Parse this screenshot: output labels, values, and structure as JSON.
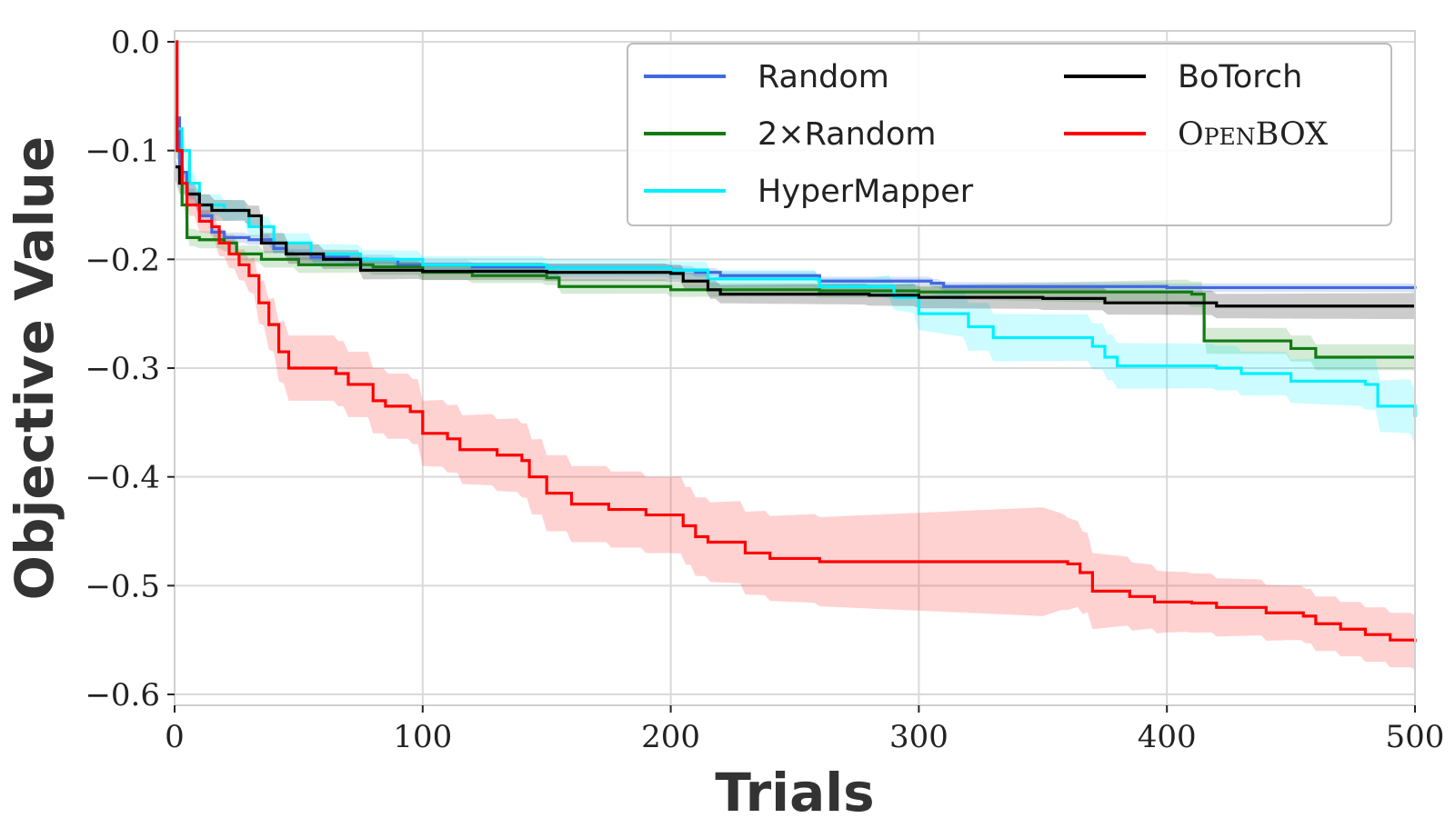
{
  "chart_data": {
    "type": "line",
    "xlabel": "Trials",
    "ylabel": "Objective Value",
    "xlim": [
      0,
      500
    ],
    "ylim": [
      -0.61,
      0.01
    ],
    "x_ticks": [
      0,
      100,
      200,
      300,
      400,
      500
    ],
    "x_tick_labels": [
      "0",
      "100",
      "200",
      "300",
      "400",
      "500"
    ],
    "y_ticks": [
      0.0,
      -0.1,
      -0.2,
      -0.3,
      -0.4,
      -0.5,
      -0.6
    ],
    "y_tick_labels": [
      "0.0",
      "−0.1",
      "−0.2",
      "−0.3",
      "−0.4",
      "−0.5",
      "−0.6"
    ],
    "grid": true,
    "legend_position": "top-right",
    "legend_columns": 2,
    "series": [
      {
        "name": "Random",
        "color": "#4169e1",
        "band_color": "#4169e1",
        "points": [
          [
            0,
            -0.07
          ],
          [
            2,
            -0.12
          ],
          [
            5,
            -0.14
          ],
          [
            10,
            -0.16
          ],
          [
            15,
            -0.175
          ],
          [
            20,
            -0.18
          ],
          [
            30,
            -0.182
          ],
          [
            40,
            -0.19
          ],
          [
            45,
            -0.195
          ],
          [
            55,
            -0.198
          ],
          [
            70,
            -0.2
          ],
          [
            90,
            -0.205
          ],
          [
            120,
            -0.207
          ],
          [
            150,
            -0.208
          ],
          [
            200,
            -0.21
          ],
          [
            210,
            -0.212
          ],
          [
            220,
            -0.215
          ],
          [
            260,
            -0.22
          ],
          [
            305,
            -0.222
          ],
          [
            310,
            -0.225
          ],
          [
            400,
            -0.226
          ],
          [
            500,
            -0.227
          ]
        ],
        "band": [
          [
            0,
            0.005
          ],
          [
            100,
            0.004
          ],
          [
            300,
            0.004
          ],
          [
            500,
            0.004
          ]
        ]
      },
      {
        "name": "2×Random",
        "color": "#117a11",
        "band_color": "#2e9c2e",
        "points": [
          [
            0,
            -0.1
          ],
          [
            3,
            -0.15
          ],
          [
            5,
            -0.18
          ],
          [
            10,
            -0.182
          ],
          [
            20,
            -0.185
          ],
          [
            25,
            -0.195
          ],
          [
            35,
            -0.2
          ],
          [
            50,
            -0.205
          ],
          [
            80,
            -0.207
          ],
          [
            100,
            -0.212
          ],
          [
            120,
            -0.215
          ],
          [
            150,
            -0.217
          ],
          [
            155,
            -0.225
          ],
          [
            200,
            -0.228
          ],
          [
            260,
            -0.229
          ],
          [
            300,
            -0.23
          ],
          [
            410,
            -0.232
          ],
          [
            415,
            -0.275
          ],
          [
            450,
            -0.282
          ],
          [
            460,
            -0.29
          ],
          [
            500,
            -0.29
          ]
        ],
        "band": [
          [
            0,
            0.008
          ],
          [
            100,
            0.007
          ],
          [
            300,
            0.006
          ],
          [
            420,
            0.012
          ],
          [
            500,
            0.012
          ]
        ]
      },
      {
        "name": "HyperMapper",
        "color": "#00f0ff",
        "band_color": "#00f0ff",
        "points": [
          [
            0,
            -0.08
          ],
          [
            3,
            -0.1
          ],
          [
            6,
            -0.13
          ],
          [
            10,
            -0.15
          ],
          [
            20,
            -0.155
          ],
          [
            30,
            -0.17
          ],
          [
            40,
            -0.185
          ],
          [
            55,
            -0.195
          ],
          [
            75,
            -0.2
          ],
          [
            100,
            -0.205
          ],
          [
            150,
            -0.208
          ],
          [
            200,
            -0.21
          ],
          [
            215,
            -0.218
          ],
          [
            260,
            -0.225
          ],
          [
            290,
            -0.235
          ],
          [
            300,
            -0.25
          ],
          [
            320,
            -0.262
          ],
          [
            330,
            -0.272
          ],
          [
            370,
            -0.28
          ],
          [
            375,
            -0.29
          ],
          [
            380,
            -0.298
          ],
          [
            420,
            -0.3
          ],
          [
            430,
            -0.305
          ],
          [
            450,
            -0.312
          ],
          [
            480,
            -0.315
          ],
          [
            485,
            -0.335
          ],
          [
            500,
            -0.345
          ]
        ],
        "band": [
          [
            0,
            0.01
          ],
          [
            100,
            0.008
          ],
          [
            280,
            0.008
          ],
          [
            320,
            0.022
          ],
          [
            450,
            0.02
          ],
          [
            500,
            0.025
          ]
        ]
      },
      {
        "name": "BoTorch",
        "color": "#000000",
        "band_color": "#000000",
        "points": [
          [
            0,
            -0.115
          ],
          [
            2,
            -0.13
          ],
          [
            5,
            -0.14
          ],
          [
            10,
            -0.15
          ],
          [
            15,
            -0.155
          ],
          [
            30,
            -0.16
          ],
          [
            35,
            -0.185
          ],
          [
            45,
            -0.195
          ],
          [
            60,
            -0.2
          ],
          [
            75,
            -0.21
          ],
          [
            100,
            -0.211
          ],
          [
            150,
            -0.212
          ],
          [
            200,
            -0.213
          ],
          [
            205,
            -0.22
          ],
          [
            215,
            -0.228
          ],
          [
            220,
            -0.232
          ],
          [
            280,
            -0.233
          ],
          [
            300,
            -0.235
          ],
          [
            350,
            -0.236
          ],
          [
            375,
            -0.24
          ],
          [
            420,
            -0.243
          ],
          [
            500,
            -0.243
          ]
        ],
        "band": [
          [
            0,
            0.01
          ],
          [
            100,
            0.008
          ],
          [
            200,
            0.008
          ],
          [
            300,
            0.01
          ],
          [
            500,
            0.012
          ]
        ]
      },
      {
        "name": "OpenBOX",
        "color": "#ff0000",
        "band_color": "#ff3030",
        "points": [
          [
            0,
            0.0
          ],
          [
            1,
            -0.1
          ],
          [
            3,
            -0.13
          ],
          [
            5,
            -0.15
          ],
          [
            10,
            -0.165
          ],
          [
            15,
            -0.17
          ],
          [
            18,
            -0.185
          ],
          [
            22,
            -0.195
          ],
          [
            26,
            -0.205
          ],
          [
            30,
            -0.215
          ],
          [
            34,
            -0.24
          ],
          [
            38,
            -0.26
          ],
          [
            42,
            -0.285
          ],
          [
            46,
            -0.3
          ],
          [
            55,
            -0.3
          ],
          [
            65,
            -0.305
          ],
          [
            70,
            -0.315
          ],
          [
            80,
            -0.33
          ],
          [
            85,
            -0.335
          ],
          [
            95,
            -0.34
          ],
          [
            100,
            -0.36
          ],
          [
            110,
            -0.365
          ],
          [
            115,
            -0.375
          ],
          [
            130,
            -0.38
          ],
          [
            140,
            -0.385
          ],
          [
            143,
            -0.4
          ],
          [
            150,
            -0.415
          ],
          [
            160,
            -0.425
          ],
          [
            175,
            -0.43
          ],
          [
            190,
            -0.435
          ],
          [
            205,
            -0.445
          ],
          [
            210,
            -0.455
          ],
          [
            215,
            -0.46
          ],
          [
            230,
            -0.47
          ],
          [
            240,
            -0.475
          ],
          [
            260,
            -0.478
          ],
          [
            300,
            -0.478
          ],
          [
            350,
            -0.478
          ],
          [
            360,
            -0.48
          ],
          [
            365,
            -0.488
          ],
          [
            370,
            -0.505
          ],
          [
            385,
            -0.51
          ],
          [
            395,
            -0.515
          ],
          [
            410,
            -0.516
          ],
          [
            420,
            -0.52
          ],
          [
            440,
            -0.525
          ],
          [
            455,
            -0.528
          ],
          [
            460,
            -0.535
          ],
          [
            470,
            -0.54
          ],
          [
            480,
            -0.545
          ],
          [
            490,
            -0.55
          ],
          [
            500,
            -0.552
          ]
        ],
        "band": [
          [
            0,
            0.01
          ],
          [
            10,
            0.01
          ],
          [
            30,
            0.015
          ],
          [
            45,
            0.03
          ],
          [
            100,
            0.03
          ],
          [
            150,
            0.035
          ],
          [
            200,
            0.035
          ],
          [
            250,
            0.04
          ],
          [
            300,
            0.045
          ],
          [
            350,
            0.05
          ],
          [
            370,
            0.035
          ],
          [
            400,
            0.028
          ],
          [
            450,
            0.025
          ],
          [
            500,
            0.025
          ]
        ]
      }
    ]
  }
}
